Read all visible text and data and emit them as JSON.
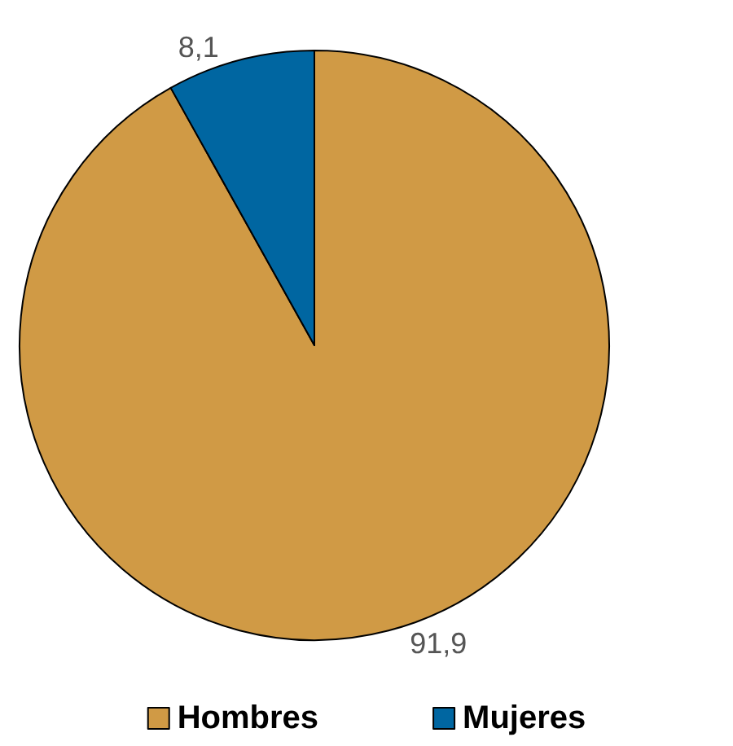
{
  "chart_data": {
    "type": "pie",
    "categories": [
      "Hombres",
      "Mujeres"
    ],
    "values": [
      91.9,
      8.1
    ],
    "colors": [
      "#d09a45",
      "#0066a1"
    ],
    "value_labels": [
      "91,9",
      "8,1"
    ],
    "legend": "bottom"
  }
}
